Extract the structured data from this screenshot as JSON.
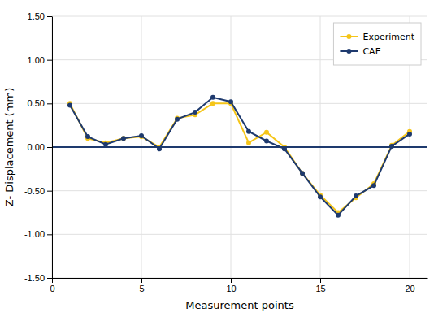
{
  "chart_data": {
    "type": "line",
    "x": [
      1,
      2,
      3,
      4,
      5,
      6,
      7,
      8,
      9,
      10,
      11,
      12,
      13,
      14,
      15,
      16,
      17,
      18,
      19,
      20
    ],
    "series": [
      {
        "name": "Experiment",
        "color": "#f5c518",
        "marker": "circle",
        "line_style": "solid",
        "values": [
          0.5,
          0.1,
          0.05,
          0.1,
          0.12,
          0.0,
          0.33,
          0.37,
          0.5,
          0.5,
          0.05,
          0.17,
          0.0,
          -0.3,
          -0.55,
          -0.75,
          -0.58,
          -0.42,
          0.02,
          0.18
        ]
      },
      {
        "name": "CAE",
        "color": "#1e3a6e",
        "marker": "circle",
        "line_style": "solid",
        "values": [
          0.48,
          0.12,
          0.03,
          0.1,
          0.13,
          -0.02,
          0.32,
          0.4,
          0.57,
          0.52,
          0.18,
          0.07,
          -0.02,
          -0.3,
          -0.57,
          -0.78,
          -0.56,
          -0.44,
          0.01,
          0.15
        ]
      }
    ],
    "hlines": [
      0
    ],
    "xlabel": "Measurement points",
    "ylabel": "Z- Displacement (mm)",
    "xlim": [
      0,
      21
    ],
    "ylim": [
      -1.5,
      1.5
    ],
    "xticks": [
      0,
      5,
      10,
      15,
      20
    ],
    "yticks": [
      {
        "value": -1.5,
        "label": "-1.50"
      },
      {
        "value": -1.0,
        "label": "-1.00"
      },
      {
        "value": -0.5,
        "label": "-0.50"
      },
      {
        "value": 0.0,
        "label": "0.00"
      },
      {
        "value": 0.5,
        "label": "0.50"
      },
      {
        "value": 1.0,
        "label": "1.00"
      },
      {
        "value": 1.5,
        "label": "1.50"
      }
    ],
    "grid": true,
    "legend": "upper-right"
  }
}
